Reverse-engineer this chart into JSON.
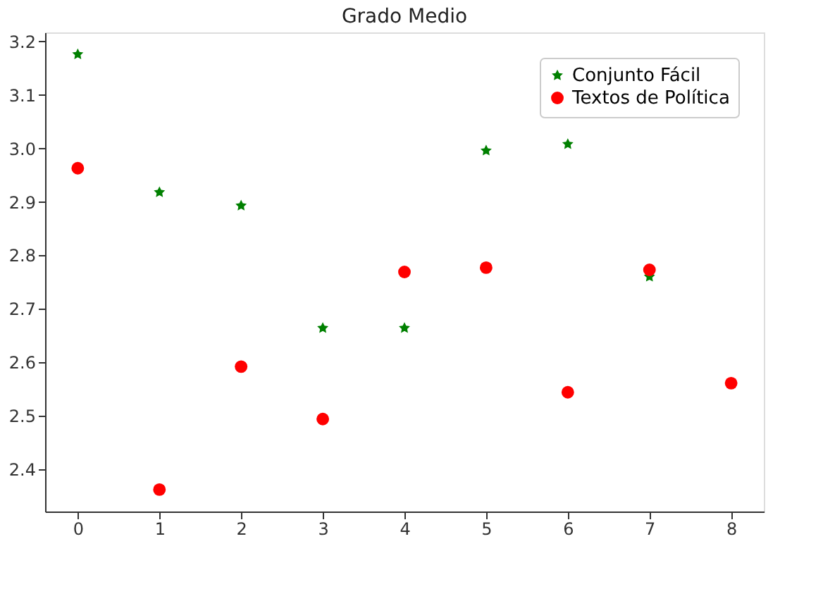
{
  "chart_data": {
    "type": "scatter",
    "title": "Grado Medio",
    "xlim": [
      -0.4,
      8.4
    ],
    "xticks": [
      0,
      1,
      2,
      3,
      4,
      5,
      6,
      7,
      8
    ],
    "ylim": [
      2.321,
      3.217
    ],
    "yticks": [
      2.4,
      2.5,
      2.6,
      2.7,
      2.8,
      2.9,
      {
        "value": 3,
        "label": "3.0"
      },
      3.1,
      3.2
    ],
    "grid": false,
    "legend": "top right",
    "series": [
      {
        "name": "Conjunto Fácil",
        "color": "#008000",
        "marker": "star",
        "x": [
          0,
          1,
          2,
          3,
          4,
          5,
          6,
          7
        ],
        "values": [
          3.176,
          2.918,
          2.893,
          2.664,
          2.664,
          2.996,
          3.008,
          2.76
        ]
      },
      {
        "name": "Textos de Política",
        "color": "#ff0000",
        "marker": "circle",
        "x": [
          0,
          1,
          2,
          3,
          4,
          5,
          6,
          7,
          8
        ],
        "values": [
          2.963,
          2.362,
          2.592,
          2.494,
          2.769,
          2.777,
          2.544,
          2.773,
          2.561
        ]
      }
    ]
  }
}
